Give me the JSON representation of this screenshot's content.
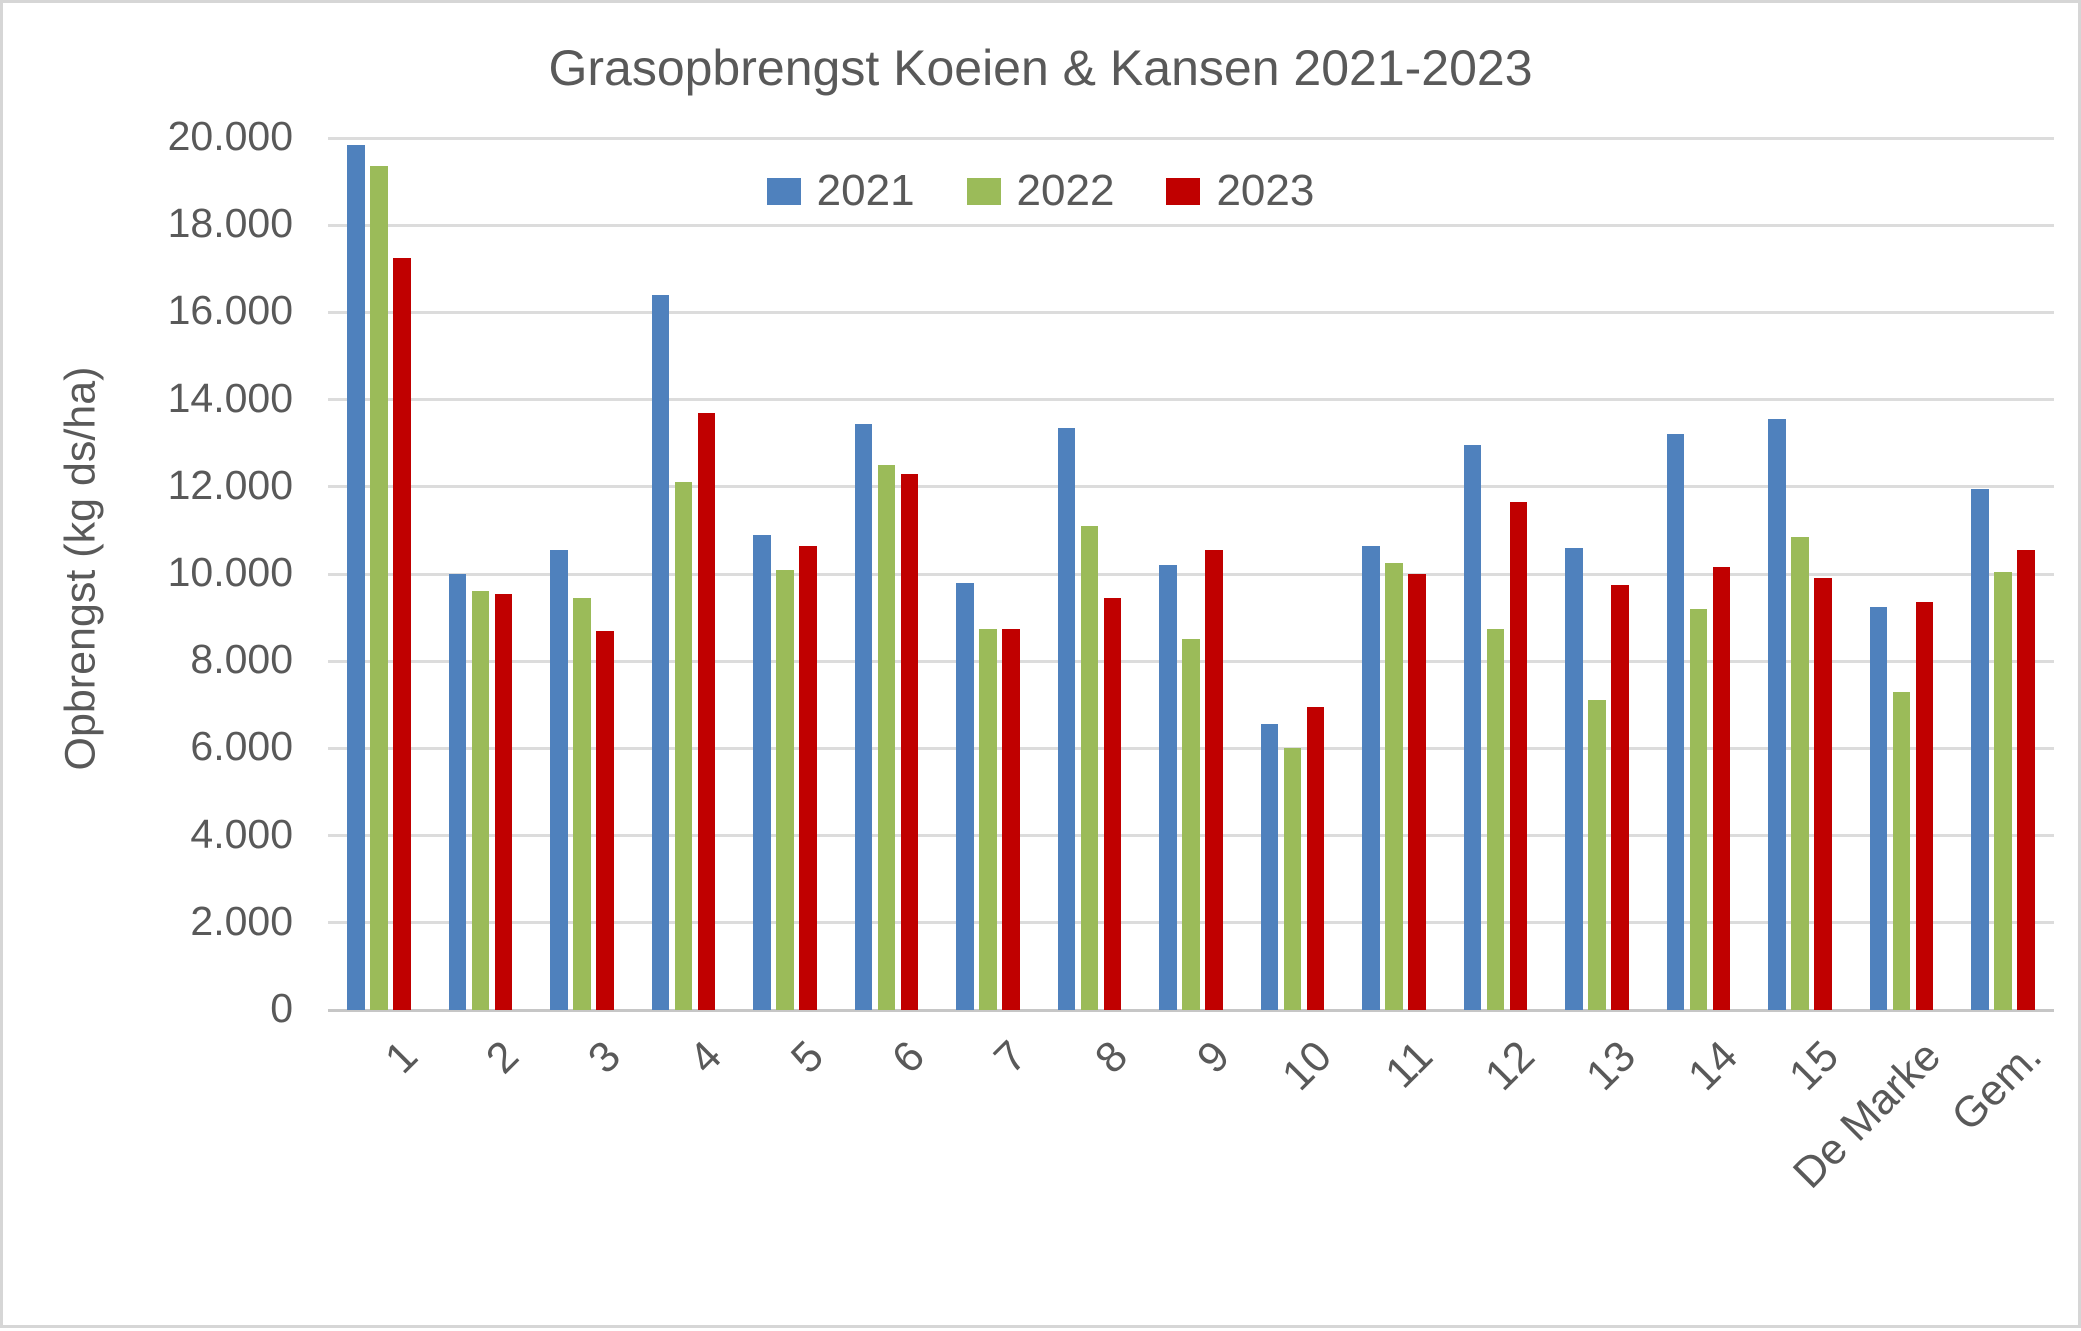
{
  "title": "Grasopbrengst Koeien & Kansen 2021-2023",
  "y_axis": {
    "label": "Opbrengst (kg ds/ha)",
    "ticks": [
      "0",
      "2.000",
      "4.000",
      "6.000",
      "8.000",
      "10.000",
      "12.000",
      "14.000",
      "16.000",
      "18.000",
      "20.000"
    ]
  },
  "legend": [
    {
      "label": "2021",
      "color": "#4F81BD"
    },
    {
      "label": "2022",
      "color": "#9BBB59"
    },
    {
      "label": "2023",
      "color": "#C00000"
    }
  ],
  "colors": {
    "text": "#595959",
    "gridline": "#DCDCDC",
    "axis": "#C6C6C6",
    "background": "#FFFFFF"
  },
  "chart_data": {
    "type": "bar",
    "title": "Grasopbrengst Koeien & Kansen 2021-2023",
    "xlabel": "",
    "ylabel": "Opbrengst (kg ds/ha)",
    "ylim": [
      0,
      20000
    ],
    "ystep": 2000,
    "grid": true,
    "legend_position": "top-center-inside",
    "categories": [
      "1",
      "2",
      "3",
      "4",
      "5",
      "6",
      "7",
      "8",
      "9",
      "10",
      "11",
      "12",
      "13",
      "14",
      "15",
      "De Marke",
      "Gem."
    ],
    "series": [
      {
        "name": "2021",
        "color": "#4F81BD",
        "values": [
          19850,
          10000,
          10550,
          16400,
          10900,
          13450,
          9800,
          13350,
          10200,
          6550,
          10650,
          12950,
          10600,
          13200,
          13550,
          9250,
          11950
        ]
      },
      {
        "name": "2022",
        "color": "#9BBB59",
        "values": [
          19350,
          9600,
          9450,
          12100,
          10100,
          12500,
          8750,
          11100,
          8500,
          6000,
          10250,
          8750,
          7100,
          9200,
          10850,
          7300,
          10050
        ]
      },
      {
        "name": "2023",
        "color": "#C00000",
        "values": [
          17250,
          9550,
          8700,
          13700,
          10650,
          12300,
          8750,
          9450,
          10550,
          6950,
          10000,
          11650,
          9750,
          10150,
          9900,
          9350,
          10550
        ]
      }
    ]
  }
}
